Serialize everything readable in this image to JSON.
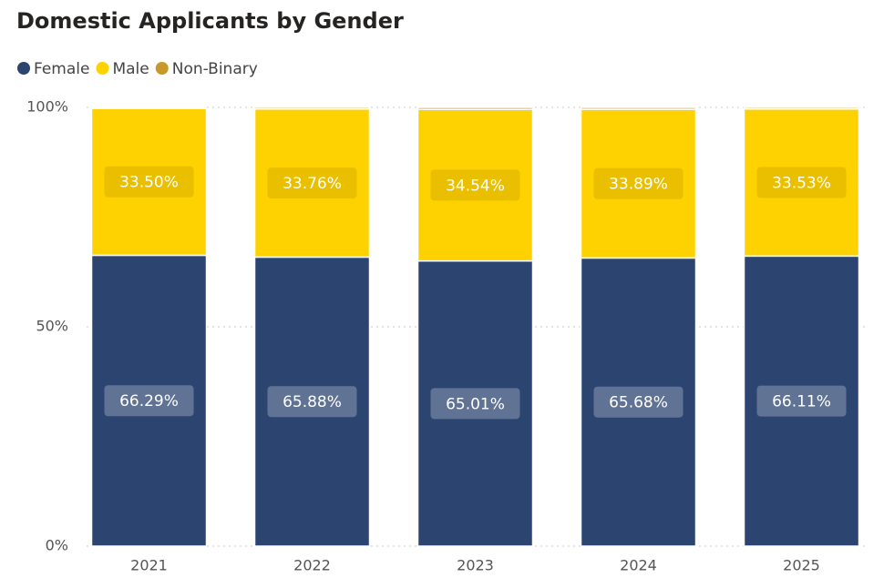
{
  "chart_data": {
    "type": "stacked_bar",
    "title": "Domestic Applicants by Gender",
    "categories": [
      "2021",
      "2022",
      "2023",
      "2024",
      "2025"
    ],
    "series": [
      {
        "name": "Female",
        "color": "#2b4470",
        "values": [
          66.29,
          65.88,
          65.01,
          65.68,
          66.11
        ],
        "value_labels": [
          "66.29%",
          "65.88%",
          "65.01%",
          "65.68%",
          "66.11%"
        ]
      },
      {
        "name": "Male",
        "color": "#fdd200",
        "values": [
          33.5,
          33.76,
          34.54,
          33.89,
          33.53
        ],
        "value_labels": [
          "33.50%",
          "33.76%",
          "34.54%",
          "33.89%",
          "33.53%"
        ]
      },
      {
        "name": "Non-Binary",
        "color": "#c9982a",
        "values": [
          0.21,
          0.36,
          0.45,
          0.43,
          0.36
        ]
      }
    ],
    "ylim": [
      0,
      100
    ],
    "yticks": [
      {
        "value": 0,
        "label": "0%"
      },
      {
        "value": 50,
        "label": "50%"
      },
      {
        "value": 100,
        "label": "100%"
      }
    ],
    "grid": true,
    "legend": "top-left"
  }
}
